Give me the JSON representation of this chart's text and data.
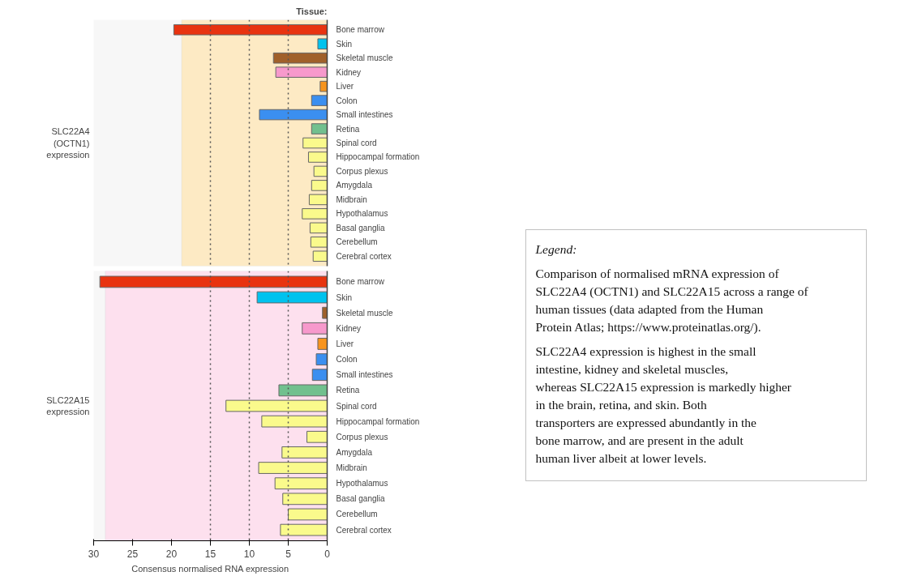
{
  "chart_data": [
    {
      "type": "bar",
      "orientation": "horizontal",
      "title": "Tissue:",
      "ylabel": "SLC22A4\n(OCTN1)\nexpression",
      "tick_labels": "y",
      "xlim": [
        30,
        0
      ],
      "xticks": [
        30,
        25,
        20,
        15,
        10,
        5,
        0
      ],
      "categories": [
        "Bone marrow",
        "Skin",
        "Skeletal muscle",
        "Kidney",
        "Liver",
        "Colon",
        "Small intestines",
        "Retina",
        "Spinal cord",
        "Hippocampal formation",
        "Corpus plexus",
        "Amygdala",
        "Midbrain",
        "Hypothalamus",
        "Basal ganglia",
        "Cerebellum",
        "Cerebral cortex"
      ],
      "values": [
        19.7,
        1.2,
        6.9,
        6.6,
        0.9,
        2.0,
        8.7,
        2.0,
        3.1,
        2.4,
        1.7,
        2.0,
        2.3,
        3.2,
        2.2,
        2.1,
        1.8
      ],
      "colors": [
        "#e83310",
        "#00c2ee",
        "#a0602a",
        "#f799cc",
        "#f7941d",
        "#3b8ff0",
        "#3b8ff0",
        "#72c08e",
        "#fafa8c",
        "#fafa8c",
        "#fafa8c",
        "#fafa8c",
        "#fafa8c",
        "#fafa8c",
        "#fafa8c",
        "#fafa8c",
        "#fafa8c"
      ],
      "bands": [
        {
          "axis": "x",
          "from": 0,
          "to": 18.7,
          "color": "#fdeac4"
        }
      ],
      "ref_lines": [
        {
          "axis": "x",
          "value": 15,
          "line_style": "dotted"
        },
        {
          "axis": "x",
          "value": 10,
          "line_style": "dotted"
        },
        {
          "axis": "x",
          "value": 5,
          "line_style": "dotted"
        }
      ]
    },
    {
      "type": "bar",
      "orientation": "horizontal",
      "ylabel": "SLC22A15\nexpression",
      "xlabel": "Consensus normalised RNA expression",
      "xlim": [
        30,
        0
      ],
      "xticks": [
        30,
        25,
        20,
        15,
        10,
        5,
        0
      ],
      "categories": [
        "Bone marrow",
        "Skin",
        "Skeletal muscle",
        "Kidney",
        "Liver",
        "Colon",
        "Small intestines",
        "Retina",
        "Spinal cord",
        "Hippocampal formation",
        "Corpus plexus",
        "Amygdala",
        "Midbrain",
        "Hypothalamus",
        "Basal ganglia",
        "Cerebellum",
        "Cerebral cortex"
      ],
      "values": [
        29.2,
        9.0,
        0.6,
        3.2,
        1.2,
        1.4,
        1.9,
        6.2,
        13.0,
        8.4,
        2.6,
        5.8,
        8.8,
        6.7,
        5.7,
        5.0,
        6.0
      ],
      "colors": [
        "#e83310",
        "#00c2ee",
        "#a0602a",
        "#f799cc",
        "#f7941d",
        "#3b8ff0",
        "#3b8ff0",
        "#72c08e",
        "#fafa8c",
        "#fafa8c",
        "#fafa8c",
        "#fafa8c",
        "#fafa8c",
        "#fafa8c",
        "#fafa8c",
        "#fafa8c",
        "#fafa8c"
      ],
      "bands": [
        {
          "axis": "x",
          "from": 0,
          "to": 28.5,
          "color": "#fde0ee"
        }
      ],
      "ref_lines": [
        {
          "axis": "x",
          "value": 15,
          "line_style": "dotted"
        },
        {
          "axis": "x",
          "value": 10,
          "line_style": "dotted"
        },
        {
          "axis": "x",
          "value": 5,
          "line_style": "dotted"
        }
      ]
    },
    {
      "type": "other",
      "title": "Legend:",
      "annotations": [
        "Comparison of normalised mRNA expression of SLC22A4 (OCTN1) and SLC22A15 across a range of human tissues (data adapted from the Human Protein Atlas; https://www.proteinatlas.org/).",
        "SLC22A4 expression is highest in the small intestine, kidney and skeletal muscles, whereas SLC22A15 expression is markedly higher in the brain, retina, and skin. Both transporters are expressed abundantly in the bone marrow, and are present in the adult human liver albeit at lower levels."
      ]
    }
  ]
}
